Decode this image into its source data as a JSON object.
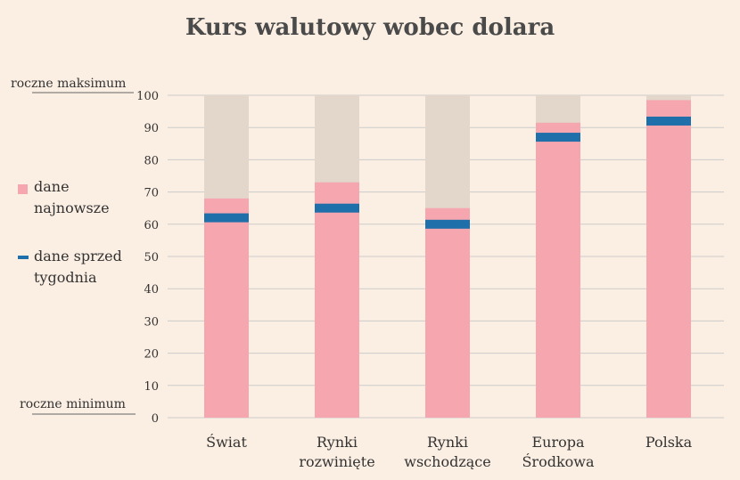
{
  "chart_data": {
    "type": "bar",
    "title": "Kurs walutowy wobec dolara",
    "categories": [
      [
        "Świat"
      ],
      [
        "Rynki",
        "rozwinięte"
      ],
      [
        "Rynki",
        "wschodzące"
      ],
      [
        "Europa",
        "Środkowa"
      ],
      [
        "Polska"
      ]
    ],
    "series": [
      {
        "name": "dane najnowsze",
        "values": [
          68,
          73,
          65,
          91.5,
          98.5
        ]
      },
      {
        "name": "dane sprzed tygodnia",
        "values": [
          62,
          65,
          60,
          87,
          92
        ]
      }
    ],
    "ylim": [
      0,
      100
    ],
    "yticks": [
      0,
      10,
      20,
      30,
      40,
      50,
      60,
      70,
      80,
      90,
      100
    ],
    "y_top_label": "roczne maksimum",
    "y_bottom_label": "roczne minimum",
    "legend": {
      "latest": [
        "dane",
        "najnowsze"
      ],
      "week_ago": [
        "dane sprzed",
        "tygodnia"
      ]
    },
    "colors": {
      "latest": "#f5a6ae",
      "week_ago": "#1f6fab",
      "range": "#e3d7cb",
      "grid": "#cccccc",
      "background": "#fbeee2"
    },
    "grid": true,
    "legend_position": "left"
  }
}
